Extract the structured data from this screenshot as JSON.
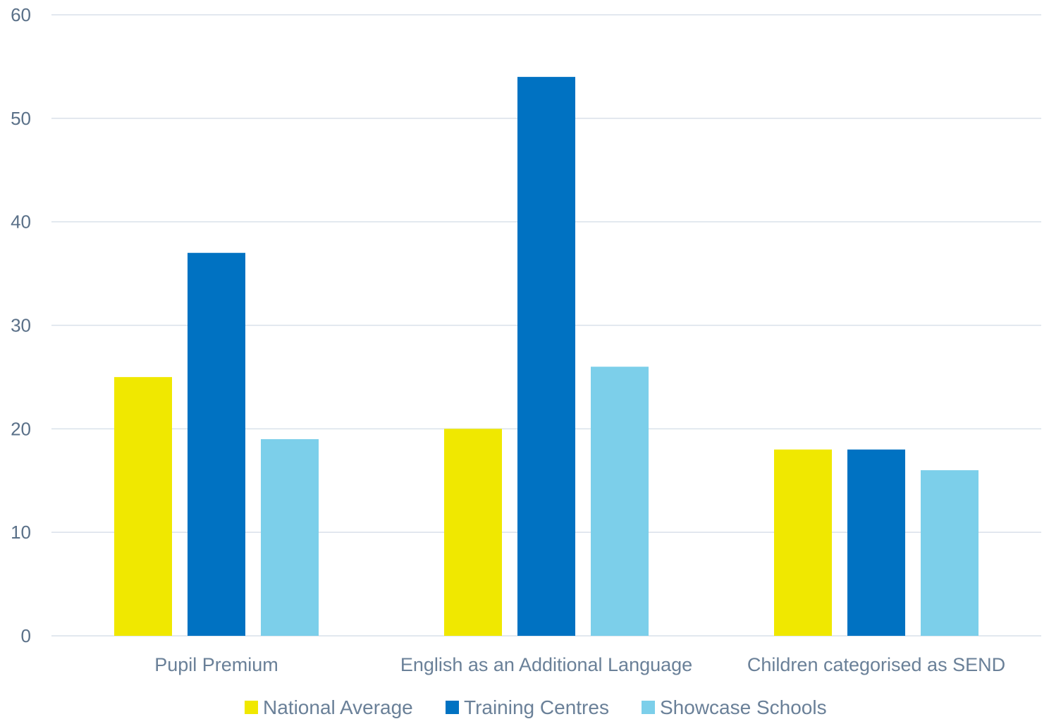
{
  "chart_data": {
    "type": "bar",
    "categories": [
      "Pupil Premium",
      "English as an Additional Language",
      "Children categorised as SEND"
    ],
    "series": [
      {
        "name": "National Average",
        "values": [
          25,
          20,
          18
        ],
        "color": "#f0e800"
      },
      {
        "name": "Training Centres",
        "values": [
          37,
          54,
          18
        ],
        "color": "#0072c2"
      },
      {
        "name": "Showcase Schools",
        "values": [
          19,
          26,
          16
        ],
        "color": "#7ccfea"
      }
    ],
    "y_ticks": [
      "0",
      "10",
      "20",
      "30",
      "40",
      "50",
      "60"
    ],
    "ylim": [
      0,
      60
    ],
    "grid": true,
    "legend_position": "bottom-center"
  }
}
